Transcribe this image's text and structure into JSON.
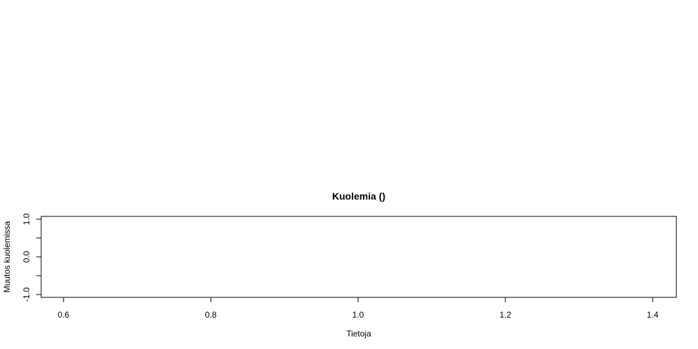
{
  "chart_data": {
    "type": "scatter",
    "title": "Kuolemia  ()",
    "xlabel": "Tietoja",
    "ylabel": "Muutos kuolemissa",
    "xlim": [
      0.6,
      1.4
    ],
    "ylim": [
      -1.0,
      1.0
    ],
    "x_ticks": [
      0.6,
      0.8,
      1.0,
      1.2,
      1.4
    ],
    "x_tick_labels": [
      "0.6",
      "0.8",
      "1.0",
      "1.2",
      "1.4"
    ],
    "y_ticks": [
      -1.0,
      -0.5,
      0.0,
      0.5,
      1.0
    ],
    "y_tick_labels": [
      "-1.0",
      "",
      "0.0",
      "",
      "1.0"
    ],
    "series": [],
    "grid": false,
    "colors": {
      "axis": "#000000",
      "background": "#ffffff"
    }
  }
}
